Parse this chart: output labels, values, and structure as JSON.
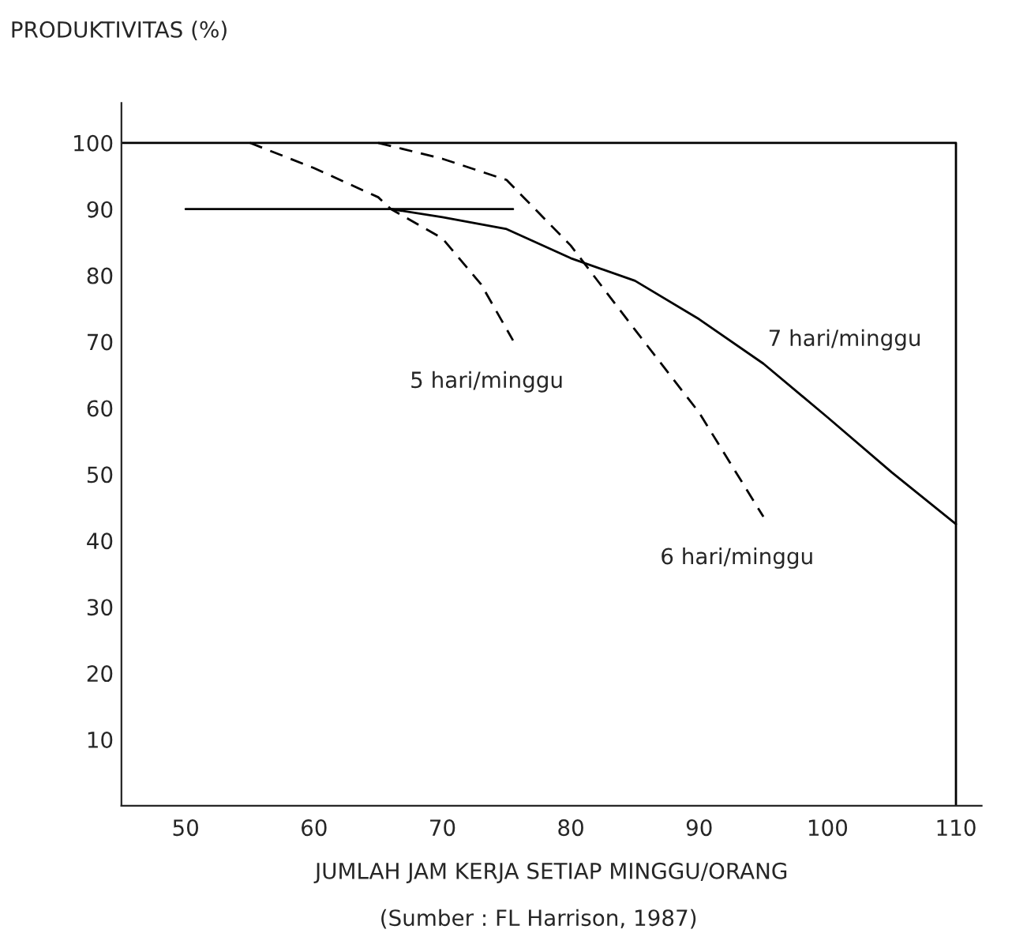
{
  "chart_data": {
    "type": "line",
    "ylabel": "PRODUKTIVITAS (%)",
    "xlabel": "JUMLAH JAM KERJA SETIAP MINGGU/ORANG",
    "annotations": [
      "(Sumber : FL Harrison, 1987)"
    ],
    "series": [
      {
        "color": "#000000",
        "line_style": "solid",
        "x": [
          45,
          110,
          110
        ],
        "values": [
          100,
          100,
          0
        ]
      },
      {
        "color": "#000000",
        "line_style": "solid",
        "x": [
          50,
          75.5
        ],
        "values": [
          90,
          90
        ]
      },
      {
        "name": "7 hari/minggu",
        "color": "#000000",
        "line_style": "solid",
        "x": [
          66,
          70,
          75,
          80,
          85,
          90,
          95,
          100,
          105,
          110
        ],
        "values": [
          90,
          88.8,
          87,
          82.6,
          79.2,
          73.4,
          66.7,
          58.6,
          50.3,
          42.5
        ]
      },
      {
        "name": "5 hari/minggu",
        "color": "#000000",
        "line_style": "dashed",
        "x": [
          55,
          60,
          65,
          66,
          70,
          73,
          75.5
        ],
        "values": [
          100,
          96.2,
          91.8,
          90,
          85.6,
          78.7,
          70.2
        ]
      },
      {
        "name": "6 hari/minggu",
        "color": "#000000",
        "line_style": "dashed",
        "x": [
          65,
          70,
          75,
          80,
          85,
          90,
          95
        ],
        "values": [
          100,
          97.6,
          94.4,
          84.5,
          71.8,
          59.3,
          43.6
        ]
      }
    ],
    "xlim": [
      45,
      112
    ],
    "ylim": [
      0,
      106
    ],
    "xticks": [
      50,
      60,
      70,
      80,
      90,
      100,
      110
    ],
    "yticks": [
      10,
      20,
      30,
      40,
      50,
      60,
      70,
      80,
      90,
      100
    ],
    "grid": false,
    "legend": false
  }
}
